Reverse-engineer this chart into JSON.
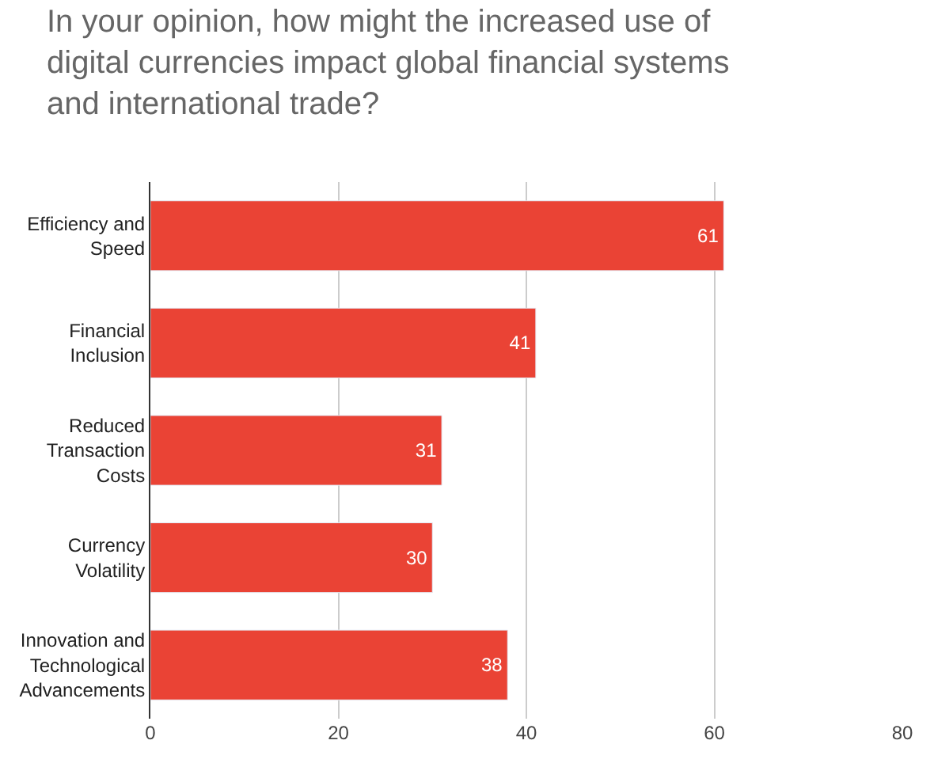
{
  "chart_data": {
    "type": "bar",
    "orientation": "horizontal",
    "title": "In your opinion, how might the increased use of digital currencies impact global financial systems and international trade?",
    "categories": [
      "Efficiency and Speed",
      "Financial Inclusion",
      "Reduced Transaction Costs",
      "Currency Volatility",
      "Innovation and Technological Advancements"
    ],
    "values": [
      61,
      41,
      31,
      30,
      38
    ],
    "color": "#ea4335",
    "data_labels": true,
    "xlim": [
      0,
      80
    ],
    "xticks": [
      0,
      20,
      40,
      60,
      80
    ],
    "grid": "x",
    "legend": false
  }
}
